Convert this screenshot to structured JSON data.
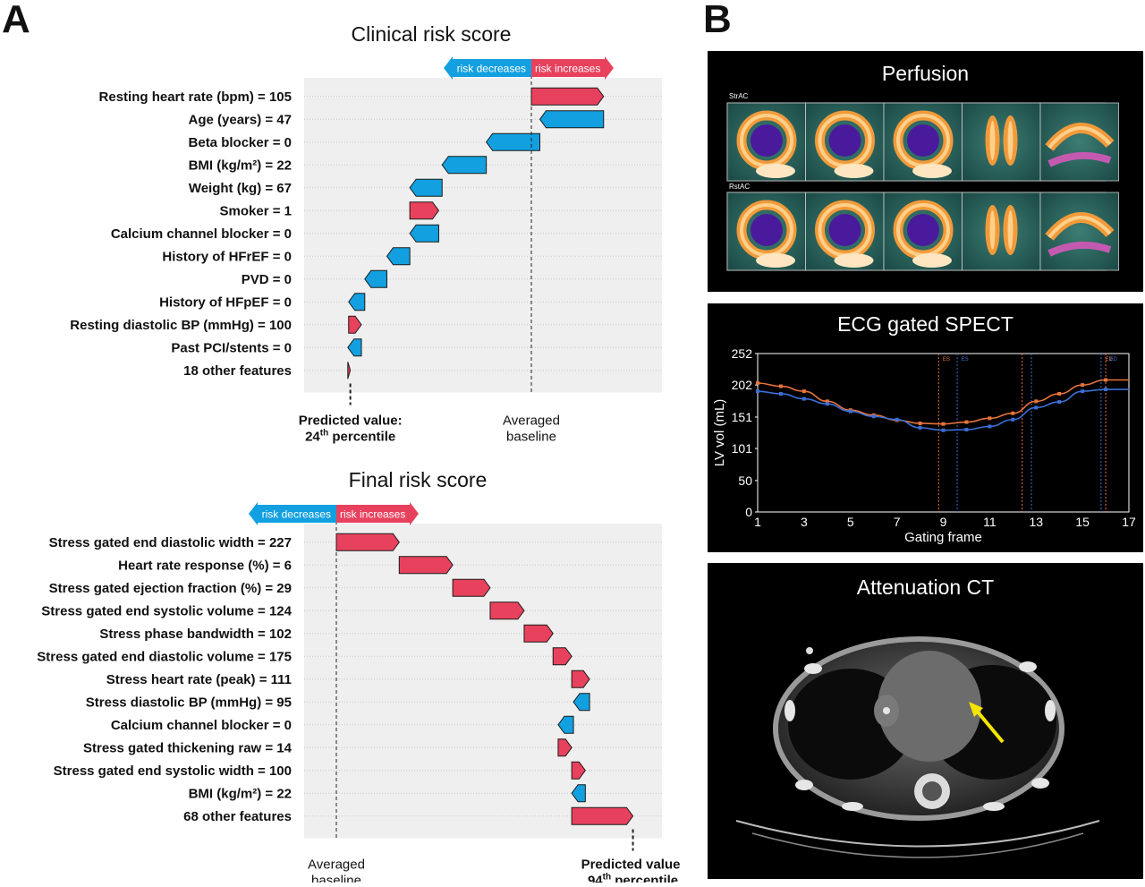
{
  "panel_a_label": "A",
  "panel_b_label": "B",
  "chart_data": [
    {
      "type": "bar",
      "title": "Clinical risk score",
      "direction_left": "risk decreases",
      "direction_right": "risk increases",
      "baseline_label": [
        "Averaged",
        "baseline"
      ],
      "prediction_label": [
        "Predicted value:",
        "24",
        "th",
        " percentile"
      ],
      "scale": {
        "baseline": 0,
        "unit_note": "SHAP contribution"
      },
      "features": [
        {
          "label": "Resting heart rate (bpm) = 105",
          "value": 0.85
        },
        {
          "label": "Age (years) = 47",
          "value": -0.75
        },
        {
          "label": "Beta blocker = 0",
          "value": -0.63
        },
        {
          "label": "BMI (kg/m²) = 22",
          "value": -0.52
        },
        {
          "label": "Weight (kg) = 67",
          "value": -0.38
        },
        {
          "label": "Smoker = 1",
          "value": 0.34
        },
        {
          "label": "Calcium channel blocker = 0",
          "value": -0.34
        },
        {
          "label": "History of HFrEF = 0",
          "value": -0.27
        },
        {
          "label": "PVD = 0",
          "value": -0.26
        },
        {
          "label": "History of HFpEF = 0",
          "value": -0.19
        },
        {
          "label": "Resting diastolic BP (mmHg) = 100",
          "value": 0.15
        },
        {
          "label": "Past PCI/stents = 0",
          "value": -0.16
        },
        {
          "label": "18 other features",
          "value": 0.03
        }
      ]
    },
    {
      "type": "bar",
      "title": "Final risk score",
      "direction_left": "risk decreases",
      "direction_right": "risk increases",
      "baseline_label": [
        "Averaged",
        "baseline"
      ],
      "prediction_label": [
        "Predicted value:",
        "94",
        "th",
        " percentile"
      ],
      "scale": {
        "baseline": 0,
        "unit_note": "SHAP contribution"
      },
      "features": [
        {
          "label": "Stress gated end diastolic width = 227",
          "value": 0.74
        },
        {
          "label": "Heart rate response (%) = 6",
          "value": 0.63
        },
        {
          "label": "Stress gated ejection fraction (%) = 29",
          "value": 0.44
        },
        {
          "label": "Stress gated end systolic volume = 124",
          "value": 0.4
        },
        {
          "label": "Stress phase bandwidth = 102",
          "value": 0.34
        },
        {
          "label": "Stress gated end diastolic volume = 175",
          "value": 0.22
        },
        {
          "label": "Stress heart rate (peak) = 111",
          "value": 0.21
        },
        {
          "label": "Stress diastolic BP (mmHg) = 95",
          "value": -0.19
        },
        {
          "label": "Calcium channel blocker = 0",
          "value": -0.18
        },
        {
          "label": "Stress gated thickening raw = 14",
          "value": 0.16
        },
        {
          "label": "Stress gated end systolic width = 100",
          "value": 0.16
        },
        {
          "label": "BMI (kg/m²) = 22",
          "value": -0.16
        },
        {
          "label": "68 other features",
          "value": 0.72
        }
      ]
    },
    {
      "type": "line",
      "title": "ECG gated SPECT",
      "xlabel": "Gating frame",
      "ylabel": "LV vol (mL)",
      "xlim": [
        1,
        17
      ],
      "ylim": [
        0,
        252
      ],
      "x_ticks": [
        1,
        3,
        5,
        7,
        9,
        11,
        13,
        15,
        17
      ],
      "y_ticks": [
        0,
        50,
        101,
        151,
        202,
        252
      ],
      "markers_top": [
        "ES",
        "ES",
        "ED",
        "ED"
      ],
      "series": [
        {
          "color": "#e8743b",
          "x": [
            1,
            2,
            3,
            4,
            5,
            6,
            7,
            8,
            9,
            10,
            11,
            12,
            13,
            14,
            15,
            16
          ],
          "y": [
            205,
            200,
            192,
            176,
            162,
            154,
            146,
            141,
            140,
            143,
            149,
            157,
            176,
            188,
            202,
            210
          ]
        },
        {
          "color": "#3b6fd6",
          "x": [
            1,
            2,
            3,
            4,
            5,
            6,
            7,
            8,
            9,
            10,
            11,
            12,
            13,
            14,
            15,
            16
          ],
          "y": [
            192,
            188,
            180,
            172,
            160,
            152,
            147,
            134,
            130,
            131,
            136,
            147,
            166,
            175,
            192,
            195
          ]
        }
      ],
      "vlines": [
        {
          "x": 8.8,
          "color": "#e8743b"
        },
        {
          "x": 9.6,
          "color": "#3b6fd6"
        },
        {
          "x": 12.4,
          "color": "#e8743b"
        },
        {
          "x": 12.8,
          "color": "#3b6fd6"
        },
        {
          "x": 15.8,
          "color": "#3b6fd6"
        },
        {
          "x": 16.0,
          "color": "#e8743b"
        }
      ]
    }
  ],
  "perfusion": {
    "title": "Perfusion",
    "row1_label": "StrAC",
    "row2_label": "RstAC"
  },
  "ct": {
    "title": "Attenuation CT"
  },
  "colors": {
    "increase": "#e8415d",
    "decrease": "#12a0e0",
    "plot_bg": "#efefef"
  }
}
